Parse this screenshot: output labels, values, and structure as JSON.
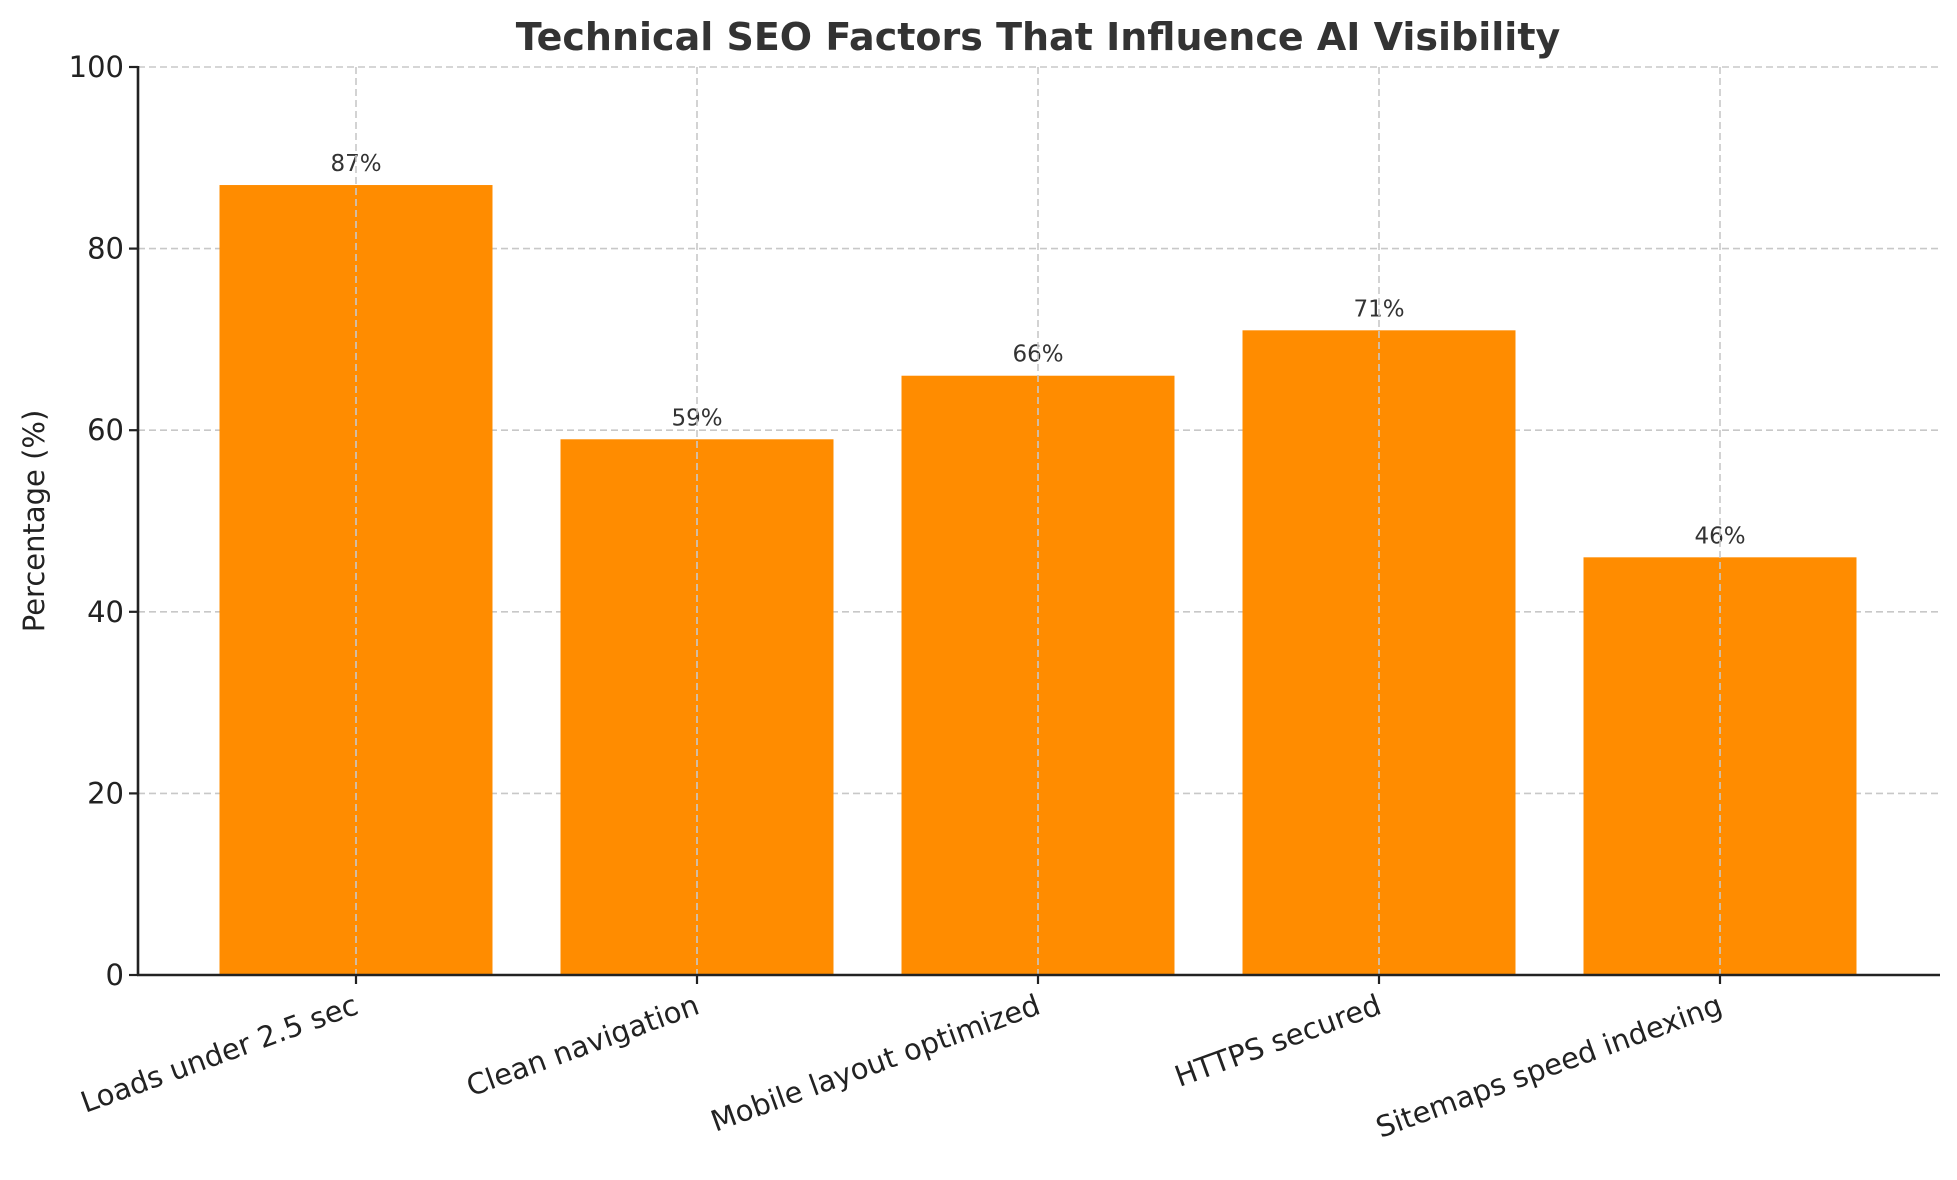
{
  "chart_data": {
    "type": "bar",
    "title": "Technical SEO Factors That Influence AI Visibility",
    "xlabel": "",
    "ylabel": "Percentage (%)",
    "categories": [
      "Loads under 2.5 sec",
      "Clean navigation",
      "Mobile layout optimized",
      "HTTPS secured",
      "Sitemaps speed indexing"
    ],
    "values": [
      87,
      59,
      66,
      71,
      46
    ],
    "value_labels": [
      "87%",
      "59%",
      "66%",
      "71%",
      "46%"
    ],
    "ylim": [
      0,
      100
    ],
    "yticks": [
      0,
      20,
      40,
      60,
      80,
      100
    ],
    "grid": true,
    "bar_color": "#FF8C00",
    "legend": null
  }
}
